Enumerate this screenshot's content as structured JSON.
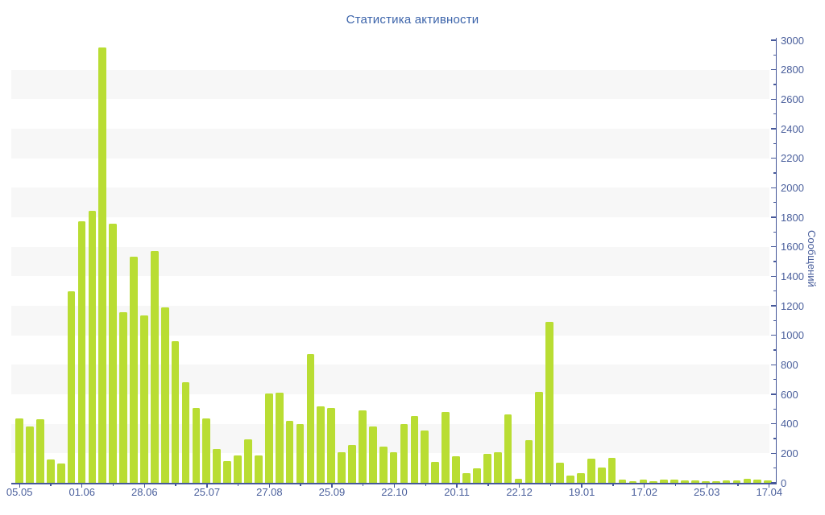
{
  "chart_data": {
    "type": "bar",
    "title": "Статистика активности",
    "ylabel": "Сообщений",
    "ylim": [
      0,
      3000
    ],
    "y_ticks": [
      0,
      200,
      400,
      600,
      800,
      1000,
      1200,
      1400,
      1600,
      1800,
      2000,
      2200,
      2400,
      2600,
      2800,
      3000
    ],
    "y_minor_tick_step": 100,
    "x_tick_labels": [
      "05.05",
      "01.06",
      "28.06",
      "25.07",
      "27.08",
      "25.09",
      "22.10",
      "20.11",
      "22.12",
      "19.01",
      "17.02",
      "25.03",
      "17.04"
    ],
    "bars_per_label": 6,
    "grid": "alternating horizontal bands of 200 units, y-axis on right, no vertical gridlines",
    "legend_position": "none",
    "values": [
      435,
      380,
      430,
      160,
      130,
      1300,
      1775,
      1845,
      2950,
      1755,
      1155,
      1535,
      1135,
      1570,
      1190,
      960,
      680,
      505,
      435,
      230,
      145,
      185,
      295,
      185,
      605,
      610,
      420,
      400,
      875,
      520,
      505,
      205,
      255,
      490,
      380,
      245,
      205,
      400,
      455,
      355,
      140,
      480,
      180,
      65,
      100,
      195,
      205,
      465,
      30,
      290,
      615,
      1090,
      135,
      50,
      65,
      165,
      105,
      170,
      20,
      10,
      20,
      10,
      20,
      20,
      15,
      15,
      10,
      10,
      15,
      15,
      25,
      20,
      15
    ],
    "colors": {
      "bar": "#b9dd33",
      "axis": "#46589a",
      "tick_label": "#4a5f9c",
      "title": "#3c64aa",
      "band": "#f7f7f7",
      "background": "#ffffff"
    }
  }
}
